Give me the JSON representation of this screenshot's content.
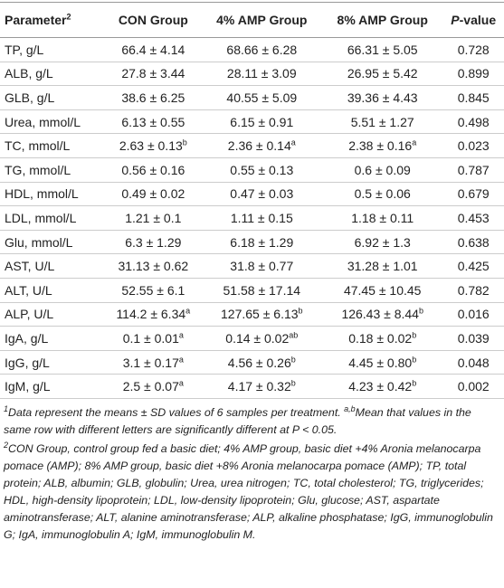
{
  "table": {
    "header": [
      {
        "text": "Parameter",
        "sup": "2"
      },
      "CON Group",
      "4% AMP Group",
      "8% AMP Group",
      {
        "italic": "P",
        "text": "-value"
      }
    ],
    "rows": [
      [
        "TP, g/L",
        "66.4 ± 4.14",
        "68.66 ± 6.28",
        "66.31 ± 5.05",
        "0.728"
      ],
      [
        "ALB, g/L",
        "27.8 ± 3.44",
        "28.11 ± 3.09",
        "26.95 ± 5.42",
        "0.899"
      ],
      [
        "GLB, g/L",
        "38.6 ± 6.25",
        "40.55 ± 5.09",
        "39.36 ± 4.43",
        "0.845"
      ],
      [
        "Urea, mmol/L",
        "6.13 ± 0.55",
        "6.15 ± 0.91",
        "5.51 ± 1.27",
        "0.498"
      ],
      [
        "TC, mmol/L",
        {
          "text": "2.63 ± 0.13",
          "sup": "b"
        },
        {
          "text": "2.36 ± 0.14",
          "sup": "a"
        },
        {
          "text": "2.38 ± 0.16",
          "sup": "a"
        },
        "0.023"
      ],
      [
        "TG, mmol/L",
        "0.56 ± 0.16",
        "0.55 ± 0.13",
        "0.6 ± 0.09",
        "0.787"
      ],
      [
        "HDL, mmol/L",
        "0.49 ± 0.02",
        "0.47 ± 0.03",
        "0.5 ± 0.06",
        "0.679"
      ],
      [
        "LDL, mmol/L",
        "1.21 ± 0.1",
        "1.11 ± 0.15",
        "1.18 ± 0.11",
        "0.453"
      ],
      [
        "Glu, mmol/L",
        "6.3 ± 1.29",
        "6.18 ± 1.29",
        "6.92 ± 1.3",
        "0.638"
      ],
      [
        "AST, U/L",
        "31.13 ± 0.62",
        "31.8 ± 0.77",
        "31.28 ± 1.01",
        "0.425"
      ],
      [
        "ALT, U/L",
        "52.55 ± 6.1",
        "51.58 ± 17.14",
        "47.45 ± 10.45",
        "0.782"
      ],
      [
        "ALP, U/L",
        {
          "text": "114.2 ± 6.34",
          "sup": "a"
        },
        {
          "text": "127.65 ± 6.13",
          "sup": "b"
        },
        {
          "text": "126.43 ± 8.44",
          "sup": "b"
        },
        "0.016"
      ],
      [
        "IgA, g/L",
        {
          "text": "0.1 ± 0.01",
          "sup": "a"
        },
        {
          "text": "0.14 ± 0.02",
          "sup": "ab"
        },
        {
          "text": "0.18 ± 0.02",
          "sup": "b"
        },
        "0.039"
      ],
      [
        "IgG, g/L",
        {
          "text": "3.1 ± 0.17",
          "sup": "a"
        },
        {
          "text": "4.56 ± 0.26",
          "sup": "b"
        },
        {
          "text": "4.45 ± 0.80",
          "sup": "b"
        },
        "0.048"
      ],
      [
        "IgM, g/L",
        {
          "text": "2.5 ± 0.07",
          "sup": "a"
        },
        {
          "text": "4.17 ± 0.32",
          "sup": "b"
        },
        {
          "text": "4.23 ± 0.42",
          "sup": "b"
        },
        "0.002"
      ]
    ]
  },
  "notes": [
    {
      "marker": "1",
      "text": "Data represent the means ± SD values of 6 samples per treatment. ",
      "sup": "a,b",
      "text_2": "Mean that values in the same row with different letters are significantly different at P < 0.05."
    },
    {
      "marker": "2",
      "text": "CON Group, control group fed a basic diet; 4% AMP group, basic diet +4% Aronia melanocarpa pomace (AMP); 8% AMP group, basic diet +8% Aronia melanocarpa pomace (AMP); TP, total protein; ALB, albumin; GLB, globulin; Urea, urea nitrogen; TC, total cholesterol; TG, triglycerides; HDL, high-density lipoprotein; LDL, low-density lipoprotein; Glu, glucose; AST, aspartate aminotransferase; ALT, alanine aminotransferase; ALP, alkaline phosphatase; IgG, immunoglobulin G; IgA, immunoglobulin A; IgM, immunoglobulin M."
    }
  ]
}
